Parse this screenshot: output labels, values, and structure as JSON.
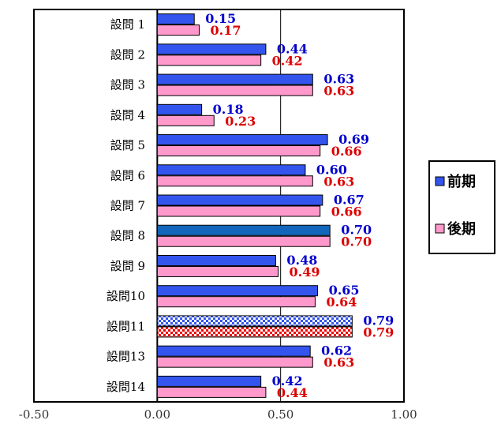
{
  "chart_data": {
    "type": "bar",
    "orientation": "horizontal",
    "categories": [
      "設問 1",
      "設問 2",
      "設問 3",
      "設問 4",
      "設問 5",
      "設問 6",
      "設問 7",
      "設問 8",
      "設問 9",
      "設問10",
      "設問11",
      "設問13",
      "設問14"
    ],
    "series": [
      {
        "name": "前期",
        "values": [
          0.15,
          0.44,
          0.63,
          0.18,
          0.69,
          0.6,
          0.67,
          0.7,
          0.48,
          0.65,
          0.79,
          0.62,
          0.42
        ],
        "labels": [
          "0.15",
          "0.44",
          "0.63",
          "0.18",
          "0.69",
          "0.60",
          "0.67",
          "0.70",
          "0.48",
          "0.65",
          "0.79",
          "0.62",
          "0.42"
        ],
        "color": "#3355ee",
        "label_color": "#0000cc"
      },
      {
        "name": "後期",
        "values": [
          0.17,
          0.42,
          0.63,
          0.23,
          0.66,
          0.63,
          0.66,
          0.7,
          0.49,
          0.64,
          0.79,
          0.63,
          0.44
        ],
        "labels": [
          "0.17",
          "0.42",
          "0.63",
          "0.23",
          "0.66",
          "0.63",
          "0.66",
          "0.70",
          "0.49",
          "0.64",
          "0.79",
          "0.63",
          "0.44"
        ],
        "color": "#ff99cc",
        "label_color": "#dd0000"
      }
    ],
    "xlim": [
      -0.5,
      1.0
    ],
    "xticks": [
      "-0.50",
      "0.00",
      "0.50",
      "1.00"
    ],
    "xtick_values": [
      -0.5,
      0.0,
      0.5,
      1.0
    ],
    "gridlines": [
      0.5
    ],
    "legend_position": "right",
    "highlighted_categories": {
      "設問 8": "solid darker fill",
      "設問11": "checkered pattern fill"
    }
  }
}
